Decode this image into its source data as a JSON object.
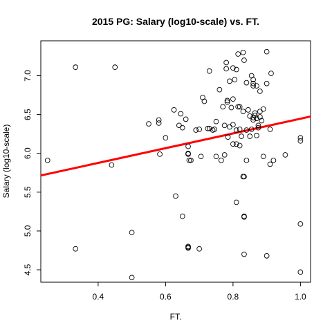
{
  "chart_data": {
    "type": "scatter",
    "title": "2015 PG: Salary (log10-scale) vs. FT.",
    "xlabel": "FT.",
    "ylabel": "Salary (log10-scale)",
    "xlim": [
      0.23,
      1.03
    ],
    "ylim": [
      4.34,
      7.45
    ],
    "xticks": [
      0.4,
      0.6,
      0.8,
      1.0
    ],
    "xtick_labels": [
      "0.4",
      "0.6",
      "0.8",
      "1.0"
    ],
    "yticks": [
      4.5,
      5.0,
      5.5,
      6.0,
      6.5,
      7.0
    ],
    "ytick_labels": [
      "4.5",
      "5.0",
      "5.5",
      "6.0",
      "6.5",
      "7.0"
    ],
    "grid": false,
    "regression_line": {
      "color": "#ff0000",
      "points": [
        [
          0.23,
          5.715
        ],
        [
          1.03,
          6.475
        ]
      ]
    },
    "marker_color": "#000000",
    "points": [
      [
        0.25,
        5.91
      ],
      [
        0.333,
        7.11
      ],
      [
        0.333,
        4.77
      ],
      [
        0.44,
        5.85
      ],
      [
        0.45,
        7.11
      ],
      [
        0.5,
        4.98
      ],
      [
        0.5,
        4.4
      ],
      [
        0.55,
        6.38
      ],
      [
        0.58,
        6.43
      ],
      [
        0.58,
        6.39
      ],
      [
        0.583,
        5.99
      ],
      [
        0.6,
        6.2
      ],
      [
        0.625,
        6.56
      ],
      [
        0.63,
        5.45
      ],
      [
        0.64,
        6.36
      ],
      [
        0.645,
        6.51
      ],
      [
        0.65,
        6.33
      ],
      [
        0.65,
        5.19
      ],
      [
        0.66,
        6.44
      ],
      [
        0.667,
        6.09
      ],
      [
        0.667,
        6.0
      ],
      [
        0.667,
        5.99
      ],
      [
        0.667,
        4.8
      ],
      [
        0.667,
        4.79
      ],
      [
        0.667,
        4.78
      ],
      [
        0.67,
        5.91
      ],
      [
        0.675,
        5.91
      ],
      [
        0.69,
        6.3
      ],
      [
        0.7,
        6.31
      ],
      [
        0.7,
        4.77
      ],
      [
        0.705,
        5.96
      ],
      [
        0.71,
        6.72
      ],
      [
        0.715,
        6.67
      ],
      [
        0.725,
        6.32
      ],
      [
        0.73,
        7.06
      ],
      [
        0.73,
        6.32
      ],
      [
        0.74,
        6.3
      ],
      [
        0.745,
        6.31
      ],
      [
        0.75,
        6.41
      ],
      [
        0.75,
        5.96
      ],
      [
        0.76,
        6.82
      ],
      [
        0.765,
        5.91
      ],
      [
        0.77,
        6.6
      ],
      [
        0.775,
        6.36
      ],
      [
        0.775,
        5.98
      ],
      [
        0.78,
        7.17
      ],
      [
        0.78,
        7.09
      ],
      [
        0.783,
        6.68
      ],
      [
        0.783,
        6.66
      ],
      [
        0.785,
        6.21
      ],
      [
        0.79,
        6.93
      ],
      [
        0.79,
        6.34
      ],
      [
        0.795,
        6.59
      ],
      [
        0.8,
        7.1
      ],
      [
        0.8,
        6.7
      ],
      [
        0.8,
        6.37
      ],
      [
        0.8,
        6.12
      ],
      [
        0.805,
        6.95
      ],
      [
        0.81,
        7.08
      ],
      [
        0.81,
        6.3
      ],
      [
        0.81,
        6.12
      ],
      [
        0.81,
        5.37
      ],
      [
        0.815,
        7.28
      ],
      [
        0.815,
        6.6
      ],
      [
        0.82,
        6.6
      ],
      [
        0.82,
        6.31
      ],
      [
        0.82,
        6.1
      ],
      [
        0.825,
        6.22
      ],
      [
        0.83,
        7.3
      ],
      [
        0.83,
        6.54
      ],
      [
        0.83,
        5.7
      ],
      [
        0.833,
        7.2
      ],
      [
        0.833,
        5.7
      ],
      [
        0.833,
        5.19
      ],
      [
        0.833,
        5.18
      ],
      [
        0.833,
        4.7
      ],
      [
        0.84,
        6.91
      ],
      [
        0.84,
        6.3
      ],
      [
        0.84,
        5.91
      ],
      [
        0.845,
        6.56
      ],
      [
        0.85,
        6.48
      ],
      [
        0.85,
        6.22
      ],
      [
        0.855,
        7.0
      ],
      [
        0.855,
        6.31
      ],
      [
        0.86,
        6.95
      ],
      [
        0.86,
        6.9
      ],
      [
        0.86,
        6.87
      ],
      [
        0.86,
        6.46
      ],
      [
        0.86,
        6.43
      ],
      [
        0.865,
        6.52
      ],
      [
        0.865,
        6.49
      ],
      [
        0.87,
        6.87
      ],
      [
        0.87,
        6.45
      ],
      [
        0.87,
        6.23
      ],
      [
        0.875,
        6.36
      ],
      [
        0.875,
        6.33
      ],
      [
        0.88,
        6.8
      ],
      [
        0.88,
        6.54
      ],
      [
        0.88,
        6.47
      ],
      [
        0.885,
        6.42
      ],
      [
        0.89,
        6.57
      ],
      [
        0.89,
        5.96
      ],
      [
        0.9,
        7.31
      ],
      [
        0.9,
        6.9
      ],
      [
        0.9,
        4.68
      ],
      [
        0.91,
        6.31
      ],
      [
        0.91,
        5.86
      ],
      [
        0.913,
        7.03
      ],
      [
        0.92,
        5.91
      ],
      [
        0.955,
        5.98
      ],
      [
        1.0,
        6.2
      ],
      [
        1.0,
        6.16
      ],
      [
        1.0,
        5.09
      ],
      [
        1.0,
        4.47
      ]
    ]
  }
}
